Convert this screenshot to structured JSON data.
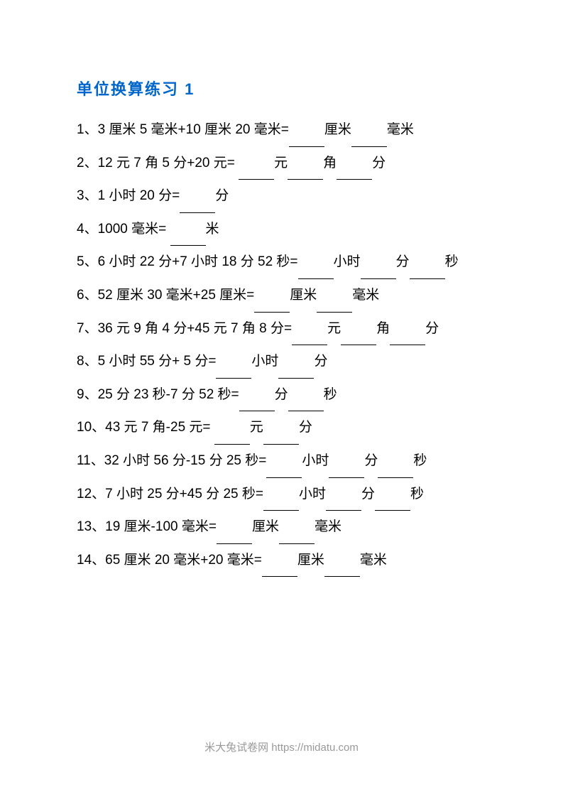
{
  "title": "单位换算练习 1",
  "questions": [
    {
      "num": "1",
      "text": "3 厘米 5 毫米+10 厘米 20 毫米=______厘米______毫米"
    },
    {
      "num": "2",
      "text": "12 元 7 角 5 分+20 元= ______元______角______分"
    },
    {
      "num": "3",
      "text": "1 小时 20 分=______分"
    },
    {
      "num": "4",
      "text": "1000 毫米= ______米"
    },
    {
      "num": "5",
      "text": "6 小时 22 分+7 小时  18 分 52 秒=______小时______分______秒"
    },
    {
      "num": "6",
      "text": "52 厘米 30 毫米+25 厘米=______厘米______毫米"
    },
    {
      "num": "7",
      "text": "36 元 9 角 4 分+45 元 7 角  8 分=______元______角______分"
    },
    {
      "num": "8",
      "text": "5 小时 55 分+ 5 分=______小时______分"
    },
    {
      "num": "9",
      "text": "25 分 23 秒-7 分 52 秒=______分______秒"
    },
    {
      "num": "10",
      "text": "43 元 7 角-25 元= ______元______分"
    },
    {
      "num": "11",
      "text": "32 小时 56 分-15 分 25 秒=______小时______分______秒"
    },
    {
      "num": "12",
      "text": "7 小时 25 分+45 分 25 秒=______小时______分______秒"
    },
    {
      "num": "13",
      "text": "19 厘米-100 毫米=______厘米______毫米"
    },
    {
      "num": "14",
      "text": "65 厘米 20 毫米+20 毫米=______厘米______毫米"
    }
  ],
  "footer": "米大兔试卷网 https://midatu.com",
  "styles": {
    "title_color": "#0066cc",
    "title_fontsize": 22,
    "body_fontsize": 19,
    "body_color": "#000000",
    "footer_color": "#999999",
    "footer_fontsize": 15,
    "background_color": "#ffffff",
    "line_height": 2.4,
    "blank_width": 50
  }
}
